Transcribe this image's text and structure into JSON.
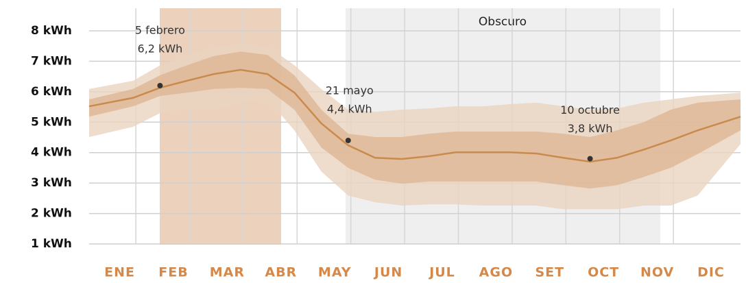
{
  "chart_data": {
    "type": "line",
    "categories": [
      "ENE",
      null,
      "FEB",
      null,
      "MAR",
      null,
      "ABR",
      null,
      "MAY",
      null,
      "JUN",
      null,
      "JUL",
      null,
      "AGO",
      null,
      "SET",
      null,
      "OCT",
      null,
      "NOV",
      null,
      "DIC",
      null
    ],
    "values": [
      5.52,
      5.8,
      6.13,
      6.36,
      6.58,
      6.72,
      6.58,
      5.97,
      4.96,
      4.24,
      3.83,
      3.79,
      3.88,
      4.01,
      4.01,
      4.01,
      3.97,
      3.83,
      3.7,
      3.83,
      4.1,
      4.4,
      4.73,
      5.18
    ],
    "color": "#c98a4b",
    "bands": [
      {
        "color": "#ead3bf",
        "high": [
          6.09,
          6.36,
          6.87,
          7.21,
          7.44,
          7.59,
          7.5,
          6.87,
          6.09,
          5.41,
          5.34,
          5.41,
          5.45,
          5.52,
          5.52,
          5.59,
          5.64,
          5.52,
          5.41,
          5.45,
          5.64,
          5.75,
          5.86,
          5.97
        ],
        "low": [
          4.51,
          4.85,
          5.3,
          5.41,
          5.41,
          5.64,
          5.75,
          4.73,
          3.38,
          2.59,
          2.37,
          2.26,
          2.3,
          2.3,
          2.26,
          2.26,
          2.26,
          2.14,
          2.14,
          2.14,
          2.26,
          2.26,
          2.59,
          4.28
        ]
      },
      {
        "color": "#ddb695",
        "high": [
          5.75,
          6.09,
          6.54,
          6.87,
          7.17,
          7.32,
          7.21,
          6.54,
          5.41,
          4.62,
          4.51,
          4.51,
          4.62,
          4.69,
          4.69,
          4.69,
          4.69,
          4.62,
          4.51,
          4.73,
          5.0,
          5.41,
          5.64,
          5.75
        ],
        "low": [
          5.18,
          5.52,
          5.86,
          5.97,
          6.09,
          6.13,
          6.09,
          5.41,
          4.17,
          3.5,
          3.11,
          2.98,
          3.05,
          3.05,
          3.05,
          3.05,
          3.05,
          2.93,
          2.82,
          2.93,
          3.2,
          3.5,
          3.95,
          4.73
        ]
      }
    ],
    "region_label": "Obscuro",
    "annotations": [
      {
        "index": 2,
        "value": 6.2,
        "text": [
          "5 febrero",
          "6,2 kWh"
        ]
      },
      {
        "index": 9,
        "value": 4.4,
        "text": [
          "21 mayo",
          "4,4 kWh"
        ]
      },
      {
        "index": 18,
        "value": 3.8,
        "text": [
          "10 octubre",
          "3,8 kWh"
        ]
      }
    ],
    "ylim": [
      1,
      8
    ],
    "yticks": [
      {
        "value": 1,
        "label": "1 kWh"
      },
      {
        "value": 2,
        "label": "2 kWh"
      },
      {
        "value": 3,
        "label": "3 kWh"
      },
      {
        "value": 4,
        "label": "4 kWh"
      },
      {
        "value": 5,
        "label": "5 kWh"
      },
      {
        "value": 6,
        "label": "6 kWh"
      },
      {
        "value": 7,
        "label": "7 kWh"
      },
      {
        "value": 8,
        "label": "8 kWh"
      }
    ],
    "grid": true
  }
}
